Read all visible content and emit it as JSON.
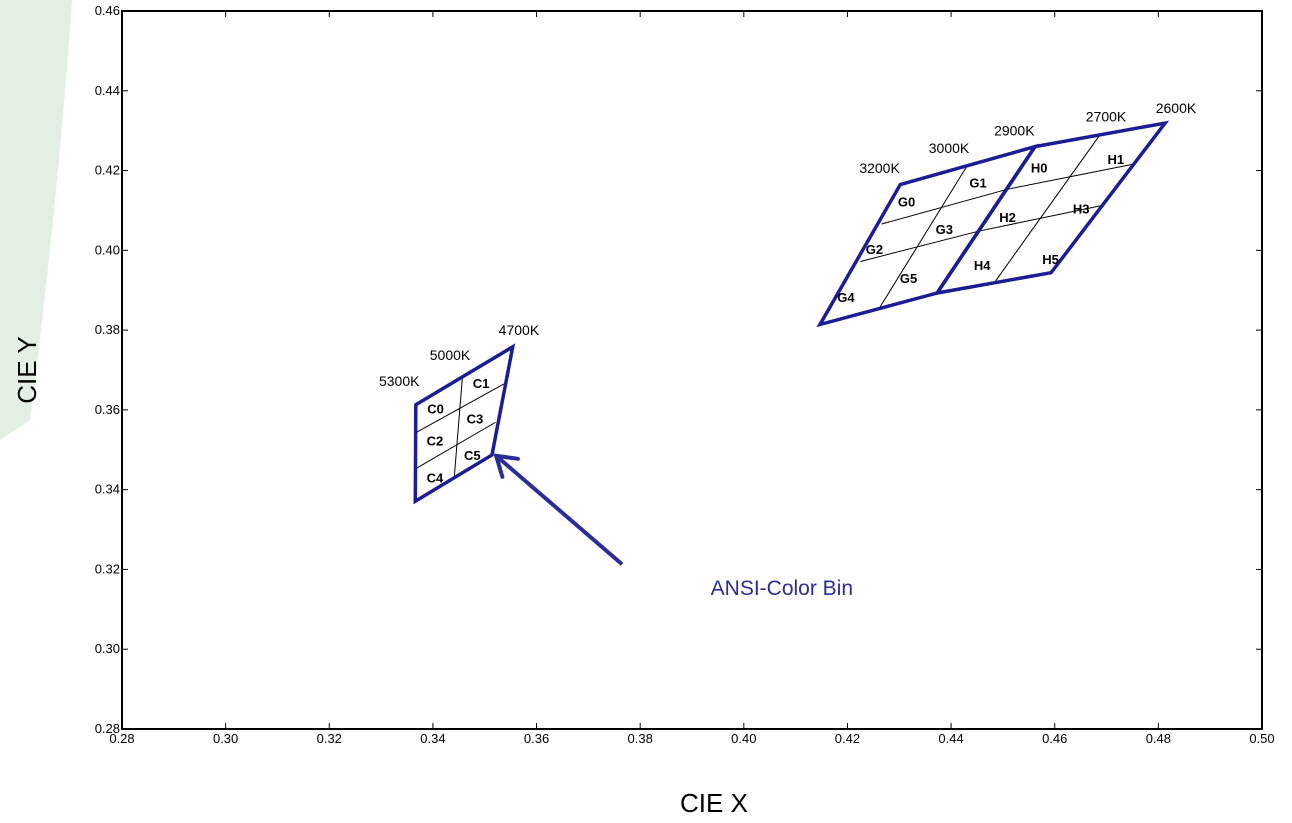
{
  "chart_data": {
    "type": "scatter",
    "title": "",
    "xlabel": "CIE X",
    "ylabel": "CIE Y",
    "xlim": [
      0.28,
      0.5
    ],
    "ylim": [
      0.28,
      0.46
    ],
    "x_ticks": [
      "0.28",
      "0.30",
      "0.32",
      "0.34",
      "0.36",
      "0.38",
      "0.40",
      "0.42",
      "0.44",
      "0.46",
      "0.48",
      "0.50"
    ],
    "y_ticks": [
      "0.28",
      "0.30",
      "0.32",
      "0.34",
      "0.36",
      "0.38",
      "0.40",
      "0.42",
      "0.44",
      "0.46"
    ],
    "grid": false,
    "colors": {
      "outline": "#1c1c96",
      "grid_line": "#000000",
      "annotation": "#2b2b9a",
      "background_band": "#e3efe3"
    },
    "quadrangles": [
      {
        "name": "C",
        "outline": [
          [
            0.3367,
            0.3613
          ],
          [
            0.3554,
            0.3758
          ],
          [
            0.3514,
            0.3487
          ],
          [
            0.3366,
            0.3371
          ]
        ],
        "divider_lines": [
          [
            [
              0.3457,
              0.3683
            ],
            [
              0.3441,
              0.3428
            ]
          ],
          [
            [
              0.3367,
              0.3543
            ],
            [
              0.3537,
              0.3665
            ]
          ],
          [
            [
              0.3366,
              0.3452
            ],
            [
              0.3521,
              0.3569
            ]
          ]
        ],
        "bins": [
          {
            "label": "C0",
            "x": 0.3405,
            "y": 0.3603
          },
          {
            "label": "C1",
            "x": 0.3493,
            "y": 0.3668
          },
          {
            "label": "C2",
            "x": 0.3404,
            "y": 0.3523
          },
          {
            "label": "C3",
            "x": 0.3481,
            "y": 0.3578
          },
          {
            "label": "C4",
            "x": 0.3404,
            "y": 0.343
          },
          {
            "label": "C5",
            "x": 0.3476,
            "y": 0.3487
          }
        ],
        "cct_labels": [
          {
            "label": "5300K",
            "x": 0.3335,
            "y": 0.3672
          },
          {
            "label": "5000K",
            "x": 0.3433,
            "y": 0.3738
          },
          {
            "label": "4700K",
            "x": 0.3566,
            "y": 0.38
          }
        ]
      },
      {
        "name": "G",
        "outline": [
          [
            0.4302,
            0.4165
          ],
          [
            0.4562,
            0.426
          ],
          [
            0.4373,
            0.3893
          ],
          [
            0.4147,
            0.3814
          ]
        ],
        "divider_lines": [
          [
            [
              0.4431,
              0.4212
            ],
            [
              0.4262,
              0.3856
            ]
          ],
          [
            [
              0.4266,
              0.4066
            ],
            [
              0.4508,
              0.4153
            ]
          ],
          [
            [
              0.4225,
              0.3972
            ],
            [
              0.4453,
              0.4048
            ]
          ]
        ],
        "bins": [
          {
            "label": "G0",
            "x": 0.4314,
            "y": 0.4123
          },
          {
            "label": "G1",
            "x": 0.4452,
            "y": 0.417
          },
          {
            "label": "G2",
            "x": 0.4252,
            "y": 0.4003
          },
          {
            "label": "G3",
            "x": 0.4387,
            "y": 0.4053
          },
          {
            "label": "G4",
            "x": 0.4197,
            "y": 0.3883
          },
          {
            "label": "G5",
            "x": 0.4318,
            "y": 0.3931
          }
        ],
        "cct_labels": [
          {
            "label": "3200K",
            "x": 0.4262,
            "y": 0.4206
          },
          {
            "label": "3000K",
            "x": 0.4396,
            "y": 0.4257
          },
          {
            "label": "2900K",
            "x": 0.4522,
            "y": 0.43
          }
        ]
      },
      {
        "name": "H",
        "outline": [
          [
            0.4562,
            0.426
          ],
          [
            0.4813,
            0.4319
          ],
          [
            0.4593,
            0.3944
          ],
          [
            0.4373,
            0.3893
          ]
        ],
        "divider_lines": [
          [
            [
              0.4687,
              0.4289
            ],
            [
              0.4483,
              0.3918
            ]
          ],
          [
            [
              0.4508,
              0.4153
            ],
            [
              0.4752,
              0.4216
            ]
          ],
          [
            [
              0.4453,
              0.4048
            ],
            [
              0.469,
              0.4112
            ]
          ]
        ],
        "bins": [
          {
            "label": "H0",
            "x": 0.457,
            "y": 0.4208
          },
          {
            "label": "H1",
            "x": 0.4718,
            "y": 0.4229
          },
          {
            "label": "H2",
            "x": 0.4509,
            "y": 0.4084
          },
          {
            "label": "H3",
            "x": 0.4651,
            "y": 0.4105
          },
          {
            "label": "H4",
            "x": 0.446,
            "y": 0.3963
          },
          {
            "label": "H5",
            "x": 0.4592,
            "y": 0.3978
          }
        ],
        "cct_labels": [
          {
            "label": "2700K",
            "x": 0.4699,
            "y": 0.4336
          },
          {
            "label": "2600K",
            "x": 0.4834,
            "y": 0.4357
          }
        ]
      }
    ],
    "annotation": {
      "text": "ANSI-Color Bin",
      "text_at": [
        0.3936,
        0.3136
      ],
      "arrow_from": [
        0.3765,
        0.3213
      ],
      "arrow_to": [
        0.3522,
        0.3485
      ]
    }
  }
}
